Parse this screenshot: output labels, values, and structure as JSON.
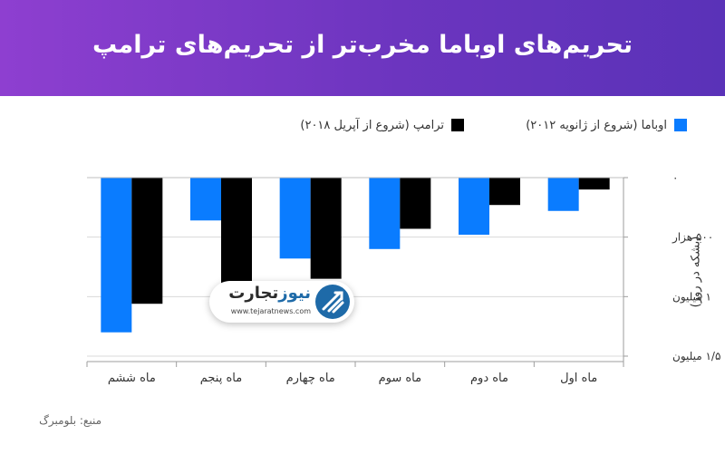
{
  "header": {
    "title": "تحریم‌های اوباما مخرب‌تر از تحریم‌های ترامپ"
  },
  "source": "منبع: بلومبرگ",
  "logo": {
    "name_part1": "تجارت",
    "name_part2": "نیوز",
    "url": "www.tejaratnews.com"
  },
  "colors": {
    "header_start": "#8e3fd0",
    "header_end": "#5a32b8",
    "obama": "#0a7cff",
    "trump": "#000000"
  },
  "chart_data": {
    "type": "bar",
    "title": "تحریم‌های اوباما مخرب‌تر از تحریم‌های ترامپ",
    "xlabel": "",
    "ylabel": "(بشکه در روز)",
    "categories": [
      "ماه اول",
      "ماه دوم",
      "ماه سوم",
      "ماه چهارم",
      "ماه پنجم",
      "ماه ششم"
    ],
    "category_order": "right-to-left",
    "y_axis_side": "right",
    "y_direction": "downward",
    "ylim": [
      0,
      1500000
    ],
    "yticks": [
      0,
      500000,
      1000000,
      1500000
    ],
    "ytick_labels": [
      "۰",
      "۵۰۰ هزار",
      "۱ میلیون",
      "۱/۵ میلیون"
    ],
    "grid": true,
    "legend_position": "top",
    "series": [
      {
        "name": "اوباما (شروع از ژانویه ۲۰۱۲)",
        "color": "#0a7cff",
        "values": [
          280000,
          480000,
          600000,
          680000,
          360000,
          1300000
        ]
      },
      {
        "name": "ترامپ (شروع از آپریل ۲۰۱۸)",
        "color": "#000000",
        "values": [
          100000,
          230000,
          430000,
          850000,
          1120000,
          1060000
        ]
      }
    ]
  }
}
